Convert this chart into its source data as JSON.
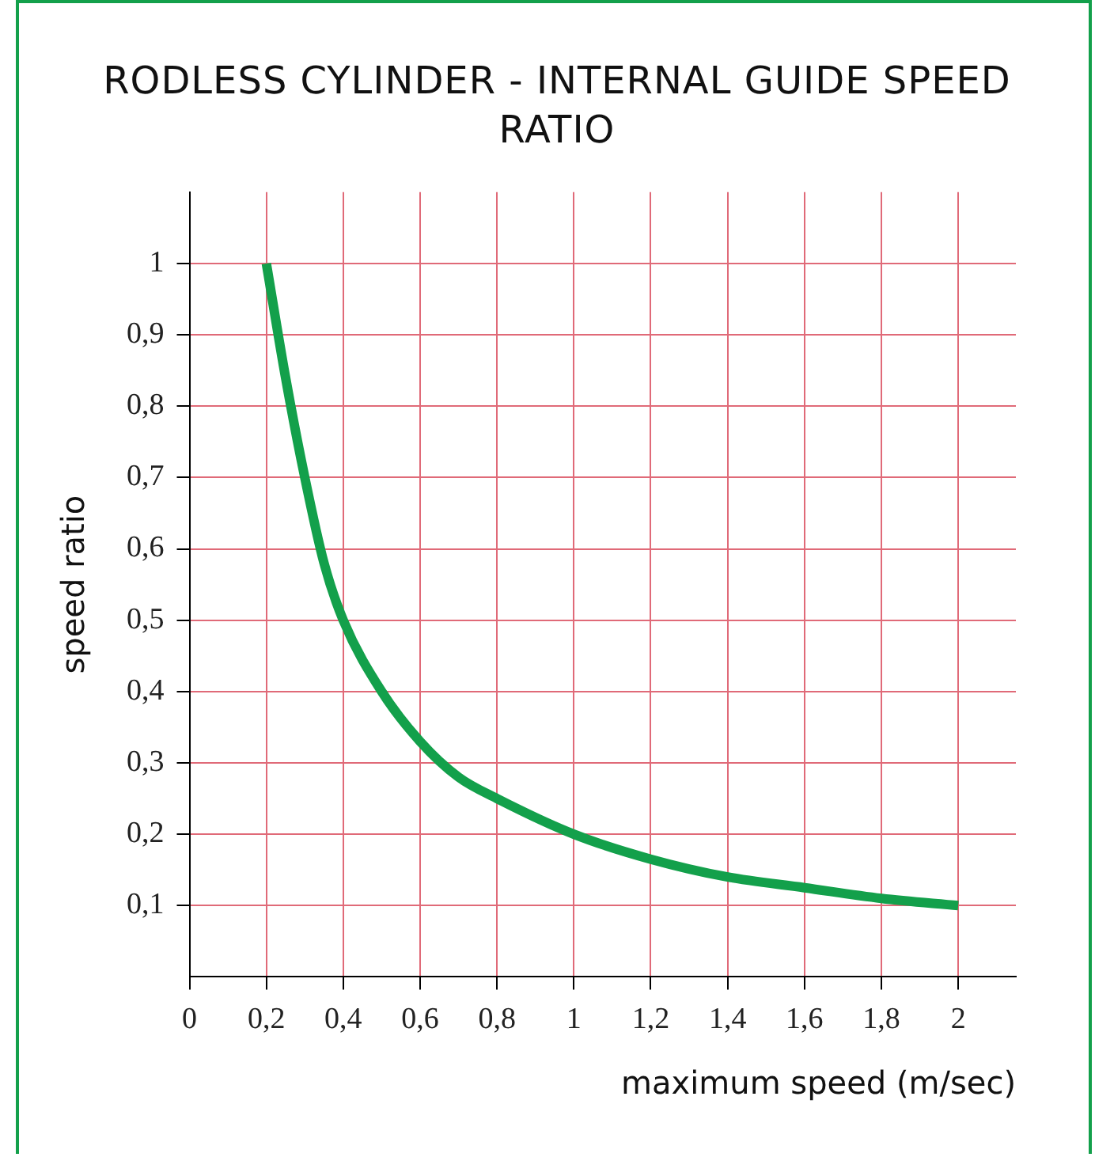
{
  "chart_data": {
    "type": "line",
    "title": "RODLESS CYLINDER - INTERNAL GUIDE SPEED RATIO",
    "xlabel": "maximum speed (m/sec)",
    "ylabel": "speed ratio",
    "x": [
      0.2,
      0.25,
      0.3,
      0.35,
      0.4,
      0.5,
      0.6,
      0.7,
      0.8,
      1,
      1.2,
      1.4,
      1.6,
      1.8,
      2
    ],
    "series": [
      {
        "color": "#13a04b",
        "values": [
          1,
          0.84,
          0.7,
          0.58,
          0.5,
          0.4,
          0.33,
          0.28,
          0.25,
          0.2,
          0.165,
          0.14,
          0.125,
          0.11,
          0.1
        ]
      }
    ],
    "xlim": [
      0,
      2.15
    ],
    "ylim": [
      0,
      1.1
    ],
    "xticks": [
      0,
      {
        "value": 0.2,
        "label": "0,2"
      },
      {
        "value": 0.4,
        "label": "0,4"
      },
      {
        "value": 0.6,
        "label": "0,6"
      },
      {
        "value": 0.8,
        "label": "0,8"
      },
      1,
      {
        "value": 1.2,
        "label": "1,2"
      },
      {
        "value": 1.4,
        "label": "1,4"
      },
      {
        "value": 1.6,
        "label": "1,6"
      },
      {
        "value": 1.8,
        "label": "1,8"
      },
      2
    ],
    "yticks": [
      {
        "value": 0.1,
        "label": "0,1"
      },
      {
        "value": 0.2,
        "label": "0,2"
      },
      {
        "value": 0.3,
        "label": "0,3"
      },
      {
        "value": 0.4,
        "label": "0,4"
      },
      {
        "value": 0.5,
        "label": "0,5"
      },
      {
        "value": 0.6,
        "label": "0,6"
      },
      {
        "value": 0.7,
        "label": "0,7"
      },
      {
        "value": 0.8,
        "label": "0,8"
      },
      {
        "value": 0.9,
        "label": "0,9"
      },
      1
    ],
    "grid": true,
    "legend": false,
    "marker": "none",
    "line_style": "solid"
  }
}
